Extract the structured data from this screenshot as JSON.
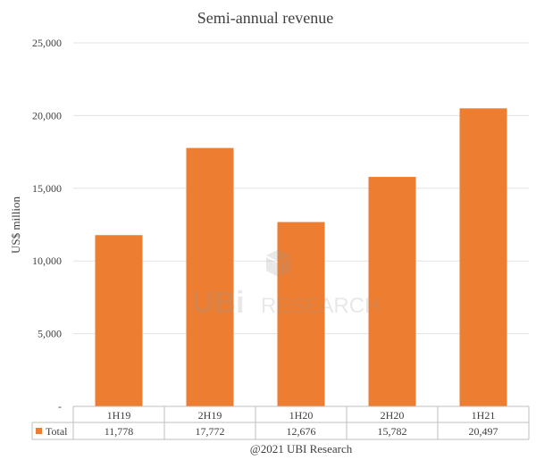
{
  "chart_data": {
    "type": "bar",
    "title": "Semi-annual revenue",
    "ylabel": "US$ million",
    "xlabel": "",
    "categories": [
      "1H19",
      "2H19",
      "1H20",
      "2H20",
      "1H21"
    ],
    "series": [
      {
        "name": "Total",
        "values": [
          11778,
          17772,
          12676,
          15782,
          20497
        ],
        "value_labels": [
          "11,778",
          "17,772",
          "12,676",
          "15,782",
          "20,497"
        ],
        "color": "#ed7d31"
      }
    ],
    "ylim": [
      0,
      25000
    ],
    "yticks": [
      {
        "value": 0,
        "label": "-"
      },
      {
        "value": 5000,
        "label": "5,000"
      },
      {
        "value": 10000,
        "label": "10,000"
      },
      {
        "value": 15000,
        "label": "15,000"
      },
      {
        "value": 20000,
        "label": "20,000"
      },
      {
        "value": 25000,
        "label": "25,000"
      }
    ],
    "grid": true,
    "legend": "data table below chart"
  },
  "source": "@2021 UBI Research",
  "watermark": {
    "text1": "UBi",
    "text2": "RESEARCH",
    "icon": "cube-logo-icon"
  },
  "colors": {
    "bar": "#ed7d31",
    "grid": "#e3e3e3",
    "text": "#404040"
  }
}
